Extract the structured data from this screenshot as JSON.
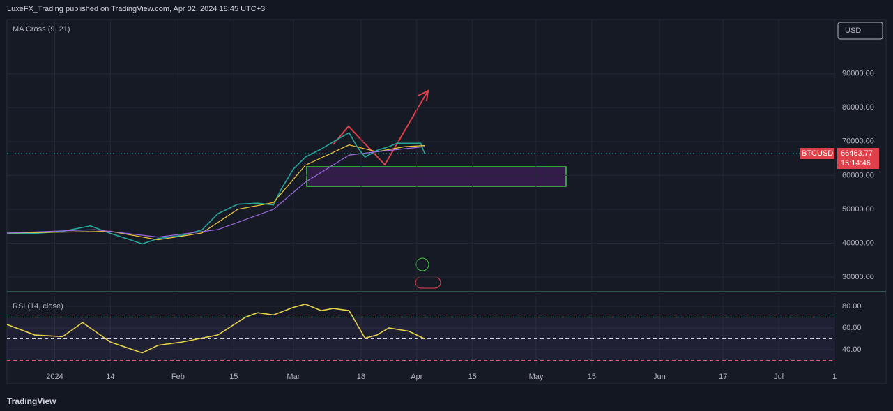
{
  "header": "LuxeFX_Trading published on TradingView.com, Apr 02, 2024 18:45 UTC+3",
  "currency": "USD",
  "watermark": "TradingView",
  "chart_data": [
    {
      "type": "line",
      "title": "MA Cross (9, 21)",
      "symbol": "BTCUSD",
      "last_price": "66463.77",
      "countdown": "15:14:46",
      "xlim": [
        -12,
        196
      ],
      "ylim": [
        25900,
        106000
      ],
      "yticks": [
        {
          "value": 30000,
          "label": "30000.00"
        },
        {
          "value": 40000,
          "label": "40000.00"
        },
        {
          "value": 50000,
          "label": "50000.00"
        },
        {
          "value": 60000,
          "label": "60000.00"
        },
        {
          "value": 70000,
          "label": "70000.00"
        },
        {
          "value": 80000,
          "label": "80000.00"
        },
        {
          "value": 90000,
          "label": "90000.00"
        }
      ],
      "grid": true,
      "series": [
        {
          "color": "#26a69a",
          "x": [
            -12,
            -5,
            2,
            9,
            14,
            18,
            22,
            26,
            32,
            37,
            41,
            46,
            51,
            55,
            57,
            60,
            63,
            67,
            70,
            74,
            76,
            78,
            81,
            84,
            86,
            89,
            92,
            93
          ],
          "values": [
            42900,
            42900,
            43500,
            45100,
            42900,
            41400,
            39800,
            41400,
            42300,
            43900,
            48700,
            51500,
            51800,
            51300,
            56100,
            61900,
            65400,
            67800,
            69900,
            72600,
            68500,
            65400,
            67400,
            68500,
            69500,
            69500,
            69500,
            66460
          ]
        },
        {
          "color": "#f0c93a",
          "x": [
            -12,
            14,
            26,
            37,
            46,
            55,
            63,
            74,
            81,
            88,
            93
          ],
          "values": [
            43000,
            43500,
            41000,
            43000,
            50000,
            52000,
            63000,
            69000,
            67000,
            68500,
            68800
          ]
        },
        {
          "color": "#9c6ade",
          "x": [
            -12,
            10,
            26,
            41,
            55,
            63,
            74,
            81,
            93
          ],
          "values": [
            43000,
            44000,
            41800,
            44000,
            50000,
            58000,
            66000,
            67000,
            68500
          ]
        }
      ]
    },
    {
      "type": "line",
      "title": "RSI (14, close)",
      "xlim": [
        -12,
        196
      ],
      "ylim": [
        24.5,
        89
      ],
      "yticks": [
        {
          "value": 80,
          "label": "80.00"
        },
        {
          "value": 60,
          "label": "60.00"
        },
        {
          "value": 40,
          "label": "40.00"
        }
      ],
      "bands": [
        70,
        50,
        30
      ],
      "xticks": [
        {
          "value": 0,
          "label": "2024"
        },
        14,
        {
          "value": 31,
          "label": "Feb"
        },
        {
          "value": 45,
          "label": "15"
        },
        {
          "value": 60,
          "label": "Mar"
        },
        {
          "value": 77,
          "label": "18"
        },
        {
          "value": 91,
          "label": "Apr"
        },
        {
          "value": 105,
          "label": "15"
        },
        {
          "value": 121,
          "label": "May"
        },
        {
          "value": 135,
          "label": "15"
        },
        {
          "value": 152,
          "label": "Jun"
        },
        {
          "value": 168,
          "label": "17"
        },
        {
          "value": 182,
          "label": "Jul"
        },
        {
          "value": 196,
          "label": "1"
        }
      ],
      "grid": true,
      "series": [
        {
          "color": "#e6d34a",
          "x": [
            -12,
            -5,
            2,
            7,
            14,
            22,
            26,
            32,
            41,
            48,
            51,
            55,
            60,
            63,
            67,
            70,
            74,
            78,
            81,
            84,
            89,
            93
          ],
          "values": [
            63.2,
            53.5,
            52,
            65,
            47,
            37,
            44,
            47,
            53.5,
            70,
            74,
            72,
            79,
            82,
            76,
            78,
            76,
            50.6,
            53.5,
            60,
            57,
            50
          ]
        }
      ]
    }
  ]
}
